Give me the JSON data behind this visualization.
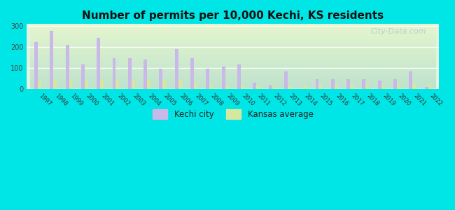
{
  "title": "Number of permits per 10,000 Kechi, KS residents",
  "years": [
    1997,
    1998,
    1999,
    2000,
    2001,
    2002,
    2003,
    2004,
    2005,
    2006,
    2007,
    2008,
    2009,
    2010,
    2011,
    2012,
    2013,
    2014,
    2015,
    2016,
    2017,
    2018,
    2019,
    2020,
    2021,
    2022
  ],
  "kechi": [
    222,
    277,
    210,
    117,
    243,
    148,
    148,
    140,
    95,
    190,
    145,
    95,
    105,
    117,
    30,
    18,
    83,
    0,
    47,
    47,
    47,
    47,
    40,
    45,
    83,
    10
  ],
  "kansas": [
    35,
    45,
    47,
    37,
    40,
    40,
    40,
    42,
    42,
    42,
    30,
    20,
    18,
    17,
    18,
    18,
    18,
    18,
    20,
    18,
    20,
    20,
    18,
    20,
    25,
    22
  ],
  "kechi_color": "#c9b8e8",
  "kansas_color": "#d4e8a0",
  "background_color_top": "#d0f0f8",
  "background_color_bottom": "#e8f5e0",
  "outer_background": "#00e5e5",
  "ylim": [
    0,
    310
  ],
  "yticks": [
    0,
    100,
    200,
    300
  ],
  "bar_width": 0.22
}
